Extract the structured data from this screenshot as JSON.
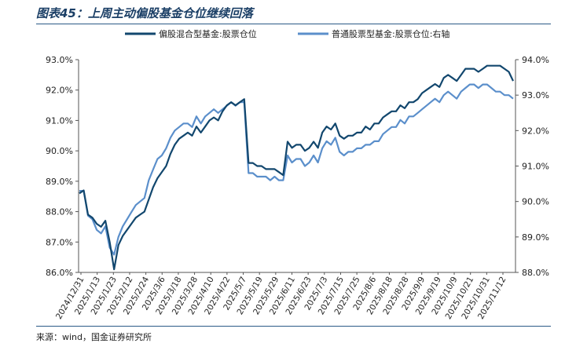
{
  "title": "图表45：上周主动偏股基金仓位继续回落",
  "source": "来源：wind，国金证券研究所",
  "chart_data": {
    "type": "line",
    "title": "图表45：上周主动偏股基金仓位继续回落",
    "legend_position": "top-center",
    "grid": false,
    "colors": {
      "left_series": "#12476e",
      "right_series": "#5b8fcb",
      "axis": "#555555"
    },
    "y_left": {
      "range": [
        86.0,
        93.0
      ],
      "ticks": [
        "86.0%",
        "87.0%",
        "88.0%",
        "89.0%",
        "90.0%",
        "91.0%",
        "92.0%",
        "93.0%"
      ]
    },
    "y_right": {
      "range": [
        88.0,
        94.0
      ],
      "ticks": [
        "88.0%",
        "89.0%",
        "90.0%",
        "91.0%",
        "92.0%",
        "93.0%",
        "94.0%"
      ]
    },
    "x_tick_labels": [
      "2024/12/31",
      "2025/1/13",
      "2025/1/23",
      "2025/2/12",
      "2025/2/24",
      "2025/3/6",
      "2025/3/18",
      "2025/3/28",
      "2025/4/10",
      "2025/4/22",
      "2025/5/7",
      "2025/5/19",
      "2025/5/29",
      "2025/6/11",
      "2025/6/23",
      "2025/7/3",
      "2025/7/15",
      "2025/7/25",
      "2025/8/6",
      "2025/8/18",
      "2025/8/28",
      "2025/9/9",
      "2025/9/19",
      "2025/10/9",
      "2025/10/21",
      "2025/10/31",
      "2025/11/12"
    ],
    "series": [
      {
        "name": "偏股混合型基金:股票仓位",
        "axis": "left",
        "values": [
          88.6,
          88.7,
          87.9,
          87.8,
          87.6,
          87.5,
          87.7,
          87.0,
          86.1,
          86.9,
          87.2,
          87.4,
          87.6,
          87.8,
          87.9,
          88.0,
          88.4,
          88.8,
          89.1,
          89.3,
          89.5,
          89.9,
          90.2,
          90.4,
          90.5,
          90.6,
          90.5,
          90.8,
          90.6,
          90.8,
          91.0,
          91.1,
          91.0,
          91.3,
          91.5,
          91.6,
          91.5,
          91.6,
          91.7,
          89.6,
          89.6,
          89.5,
          89.5,
          89.4,
          89.4,
          89.4,
          89.3,
          89.2,
          90.3,
          90.1,
          90.2,
          90.2,
          90.0,
          90.1,
          90.3,
          90.1,
          90.6,
          90.8,
          90.7,
          90.9,
          90.5,
          90.4,
          90.5,
          90.5,
          90.6,
          90.6,
          90.8,
          90.7,
          90.9,
          90.9,
          91.1,
          91.2,
          91.3,
          91.3,
          91.5,
          91.4,
          91.6,
          91.6,
          91.7,
          91.9,
          92.0,
          92.1,
          92.2,
          92.1,
          92.4,
          92.5,
          92.4,
          92.3,
          92.5,
          92.7,
          92.7,
          92.7,
          92.6,
          92.7,
          92.8,
          92.8,
          92.8,
          92.8,
          92.7,
          92.6,
          92.3
        ]
      },
      {
        "name": "普通股票型基金:股票仓位:右轴",
        "axis": "right",
        "values": [
          90.3,
          90.3,
          89.6,
          89.5,
          89.2,
          89.1,
          89.3,
          88.7,
          88.5,
          89.0,
          89.3,
          89.5,
          89.7,
          89.9,
          90.0,
          90.1,
          90.6,
          90.9,
          91.2,
          91.3,
          91.5,
          91.8,
          92.0,
          92.1,
          92.2,
          92.2,
          92.1,
          92.4,
          92.2,
          92.4,
          92.5,
          92.6,
          92.5,
          92.6,
          92.7,
          92.8,
          92.7,
          92.8,
          92.8,
          90.8,
          90.8,
          90.7,
          90.7,
          90.7,
          90.6,
          90.7,
          90.6,
          90.6,
          91.3,
          91.1,
          91.2,
          91.2,
          91.0,
          91.1,
          91.3,
          91.1,
          91.5,
          91.7,
          91.6,
          91.8,
          91.4,
          91.3,
          91.4,
          91.4,
          91.5,
          91.5,
          91.6,
          91.6,
          91.7,
          91.7,
          91.9,
          92.0,
          92.1,
          92.1,
          92.3,
          92.2,
          92.4,
          92.4,
          92.5,
          92.6,
          92.7,
          92.8,
          92.9,
          92.8,
          93.0,
          93.1,
          93.0,
          92.9,
          93.1,
          93.2,
          93.3,
          93.3,
          93.2,
          93.3,
          93.3,
          93.2,
          93.1,
          93.1,
          93.0,
          93.0,
          92.9
        ]
      }
    ]
  }
}
